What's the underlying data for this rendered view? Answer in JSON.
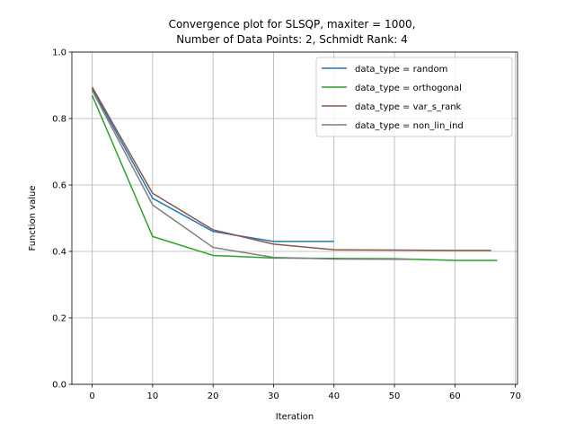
{
  "chart_data": {
    "type": "line",
    "title_line1": "Convergence plot for SLSQP, maxiter = 1000,",
    "title_line2": "Number of Data Points: 2, Schmidt Rank: 4",
    "xlabel": "Iteration",
    "ylabel": "Function value",
    "xlim": [
      -3.35,
      70.35
    ],
    "ylim": [
      0.0,
      1.0
    ],
    "x_ticks": [
      0,
      10,
      20,
      30,
      40,
      50,
      60,
      70
    ],
    "y_ticks": [
      0.0,
      0.2,
      0.4,
      0.6,
      0.8,
      1.0
    ],
    "x_tick_labels": [
      "0",
      "10",
      "20",
      "30",
      "40",
      "50",
      "60",
      "70"
    ],
    "y_tick_labels": [
      "0.0",
      "0.2",
      "0.4",
      "0.6",
      "0.8",
      "1.0"
    ],
    "grid": true,
    "legend_position": "top-right",
    "series": [
      {
        "name": "data_type = random",
        "color": "#1f77b4",
        "x": [
          0,
          10,
          20,
          30,
          40
        ],
        "y": [
          0.89,
          0.56,
          0.46,
          0.43,
          0.43
        ]
      },
      {
        "name": "data_type = orthogonal",
        "color": "#2ca02c",
        "x": [
          0,
          10,
          20,
          30,
          40,
          50,
          60,
          67
        ],
        "y": [
          0.87,
          0.445,
          0.388,
          0.38,
          0.379,
          0.378,
          0.373,
          0.373
        ]
      },
      {
        "name": "data_type = var_s_rank",
        "color": "#8c564b",
        "x": [
          0,
          10,
          20,
          30,
          40,
          50,
          60,
          66
        ],
        "y": [
          0.895,
          0.575,
          0.465,
          0.422,
          0.405,
          0.404,
          0.403,
          0.403
        ]
      },
      {
        "name": "data_type = non_lin_ind",
        "color": "#7f7f7f",
        "x": [
          0,
          10,
          20,
          30,
          40,
          53
        ],
        "y": [
          0.885,
          0.54,
          0.412,
          0.382,
          0.377,
          0.376
        ]
      }
    ]
  }
}
